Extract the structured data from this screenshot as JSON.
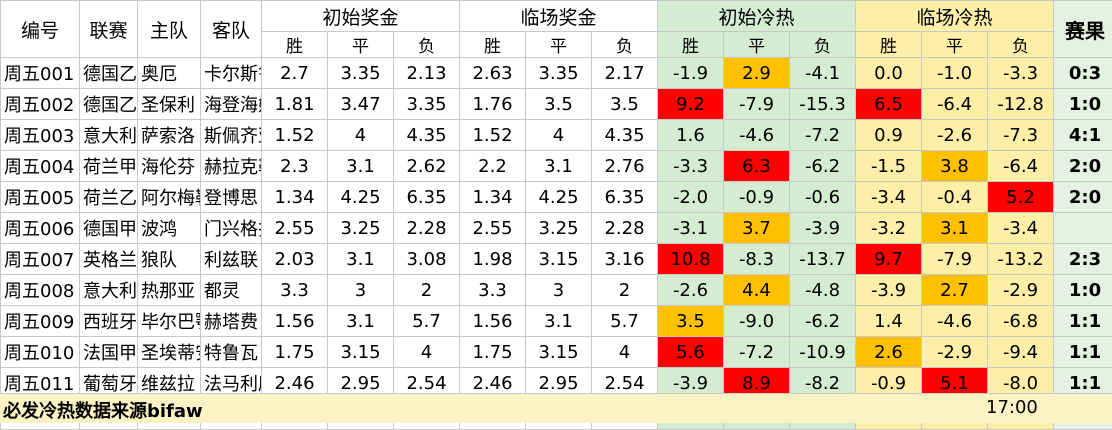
{
  "headers": {
    "id": "编号",
    "league": "联赛",
    "home": "主队",
    "away": "客队",
    "initial_prize": "初始奖金",
    "live_prize": "临场奖金",
    "initial_heat": "初始冷热",
    "live_heat": "临场冷热",
    "result": "赛果",
    "win": "胜",
    "draw": "平",
    "loss": "负"
  },
  "rows": [
    {
      "id": "周五001",
      "league": "德国乙组",
      "home": "奥厄",
      "away": "卡尔斯鲁",
      "ip": [
        "2.7",
        "3.35",
        "2.13"
      ],
      "lp": [
        "2.63",
        "3.35",
        "2.17"
      ],
      "ih": [
        "-1.9",
        "2.9",
        "-4.1"
      ],
      "lh": [
        "0.0",
        "-1.0",
        "-3.3"
      ],
      "result": "0:3"
    },
    {
      "id": "周五002",
      "league": "德国乙组",
      "home": "圣保利",
      "away": "海登海姆",
      "ip": [
        "1.81",
        "3.47",
        "3.35"
      ],
      "lp": [
        "1.76",
        "3.5",
        "3.5"
      ],
      "ih": [
        "9.2",
        "-7.9",
        "-15.3"
      ],
      "lh": [
        "6.5",
        "-6.4",
        "-12.8"
      ],
      "result": "1:0"
    },
    {
      "id": "周五003",
      "league": "意大利乙",
      "home": "萨索洛",
      "away": "斯佩齐亚",
      "ip": [
        "1.52",
        "4",
        "4.35"
      ],
      "lp": [
        "1.52",
        "4",
        "4.35"
      ],
      "ih": [
        "1.6",
        "-4.6",
        "-7.2"
      ],
      "lh": [
        "0.9",
        "-2.6",
        "-7.3"
      ],
      "result": "4:1"
    },
    {
      "id": "周五004",
      "league": "荷兰甲组",
      "home": "海伦芬",
      "away": "赫拉克勒",
      "ip": [
        "2.3",
        "3.1",
        "2.62"
      ],
      "lp": [
        "2.2",
        "3.1",
        "2.76"
      ],
      "ih": [
        "-3.3",
        "6.3",
        "-6.2"
      ],
      "lh": [
        "-1.5",
        "3.8",
        "-6.4"
      ],
      "result": "2:0"
    },
    {
      "id": "周五005",
      "league": "荷兰乙组",
      "home": "阿尔梅勒",
      "away": "登博思",
      "ip": [
        "1.34",
        "4.25",
        "6.35"
      ],
      "lp": [
        "1.34",
        "4.25",
        "6.35"
      ],
      "ih": [
        "-2.0",
        "-0.9",
        "-0.6"
      ],
      "lh": [
        "-3.4",
        "-0.4",
        "5.2"
      ],
      "result": "2:0"
    },
    {
      "id": "周五006",
      "league": "德国甲组",
      "home": "波鸿",
      "away": "门兴格拉",
      "ip": [
        "2.55",
        "3.25",
        "2.28"
      ],
      "lp": [
        "2.55",
        "3.25",
        "2.28"
      ],
      "ih": [
        "-3.1",
        "3.7",
        "-3.9"
      ],
      "lh": [
        "-3.2",
        "3.1",
        "-3.4"
      ],
      "result": ""
    },
    {
      "id": "周五007",
      "league": "英格兰甲",
      "home": "狼队",
      "away": "利兹联",
      "ip": [
        "2.03",
        "3.1",
        "3.08"
      ],
      "lp": [
        "1.98",
        "3.15",
        "3.16"
      ],
      "ih": [
        "10.8",
        "-8.3",
        "-13.7"
      ],
      "lh": [
        "9.7",
        "-7.9",
        "-13.2"
      ],
      "result": "2:3"
    },
    {
      "id": "周五008",
      "league": "意大利甲",
      "home": "热那亚",
      "away": "都灵",
      "ip": [
        "3.3",
        "3",
        "2"
      ],
      "lp": [
        "3.3",
        "3",
        "2"
      ],
      "ih": [
        "-2.6",
        "4.4",
        "-4.8"
      ],
      "lh": [
        "-3.9",
        "2.7",
        "-2.9"
      ],
      "result": "1:0"
    },
    {
      "id": "周五009",
      "league": "西班牙甲",
      "home": "毕尔巴鄂",
      "away": "赫塔费",
      "ip": [
        "1.56",
        "3.1",
        "5.7"
      ],
      "lp": [
        "1.56",
        "3.1",
        "5.7"
      ],
      "ih": [
        "3.5",
        "-9.0",
        "-6.2"
      ],
      "lh": [
        "1.4",
        "-4.6",
        "-6.8"
      ],
      "result": "1:1"
    },
    {
      "id": "周五010",
      "league": "法国甲组",
      "home": "圣埃蒂安",
      "away": "特鲁瓦",
      "ip": [
        "1.75",
        "3.15",
        "4"
      ],
      "lp": [
        "1.75",
        "3.15",
        "4"
      ],
      "ih": [
        "5.6",
        "-7.2",
        "-10.9"
      ],
      "lh": [
        "2.6",
        "-2.9",
        "-9.4"
      ],
      "result": "1:1"
    },
    {
      "id": "周五011",
      "league": "葡萄牙甲",
      "home": "维兹拉",
      "away": "法马利康",
      "ip": [
        "2.46",
        "2.95",
        "2.54"
      ],
      "lp": [
        "2.46",
        "2.95",
        "2.54"
      ],
      "ih": [
        "-3.9",
        "8.9",
        "-8.2"
      ],
      "lh": [
        "-0.9",
        "5.1",
        "-8.0"
      ],
      "result": "1:1"
    }
  ],
  "highlights": {
    "ih": [
      [
        null,
        "orange",
        null
      ],
      [
        "red",
        null,
        null
      ],
      [
        null,
        null,
        null
      ],
      [
        null,
        "red",
        null
      ],
      [
        null,
        null,
        null
      ],
      [
        null,
        "orange",
        null
      ],
      [
        "red",
        null,
        null
      ],
      [
        null,
        "orange",
        null
      ],
      [
        "orange",
        null,
        null
      ],
      [
        "red",
        null,
        null
      ],
      [
        null,
        "red",
        null
      ]
    ],
    "lh": [
      [
        null,
        null,
        null
      ],
      [
        "red",
        null,
        null
      ],
      [
        null,
        null,
        null
      ],
      [
        null,
        "orange",
        null
      ],
      [
        null,
        null,
        "red"
      ],
      [
        null,
        "orange",
        null
      ],
      [
        "red",
        null,
        null
      ],
      [
        null,
        "orange",
        null
      ],
      [
        null,
        null,
        null
      ],
      [
        "orange",
        null,
        null
      ],
      [
        null,
        "red",
        null
      ]
    ]
  },
  "footer": {
    "source": "必发冷热数据来源bifaw",
    "time": "17:00"
  }
}
